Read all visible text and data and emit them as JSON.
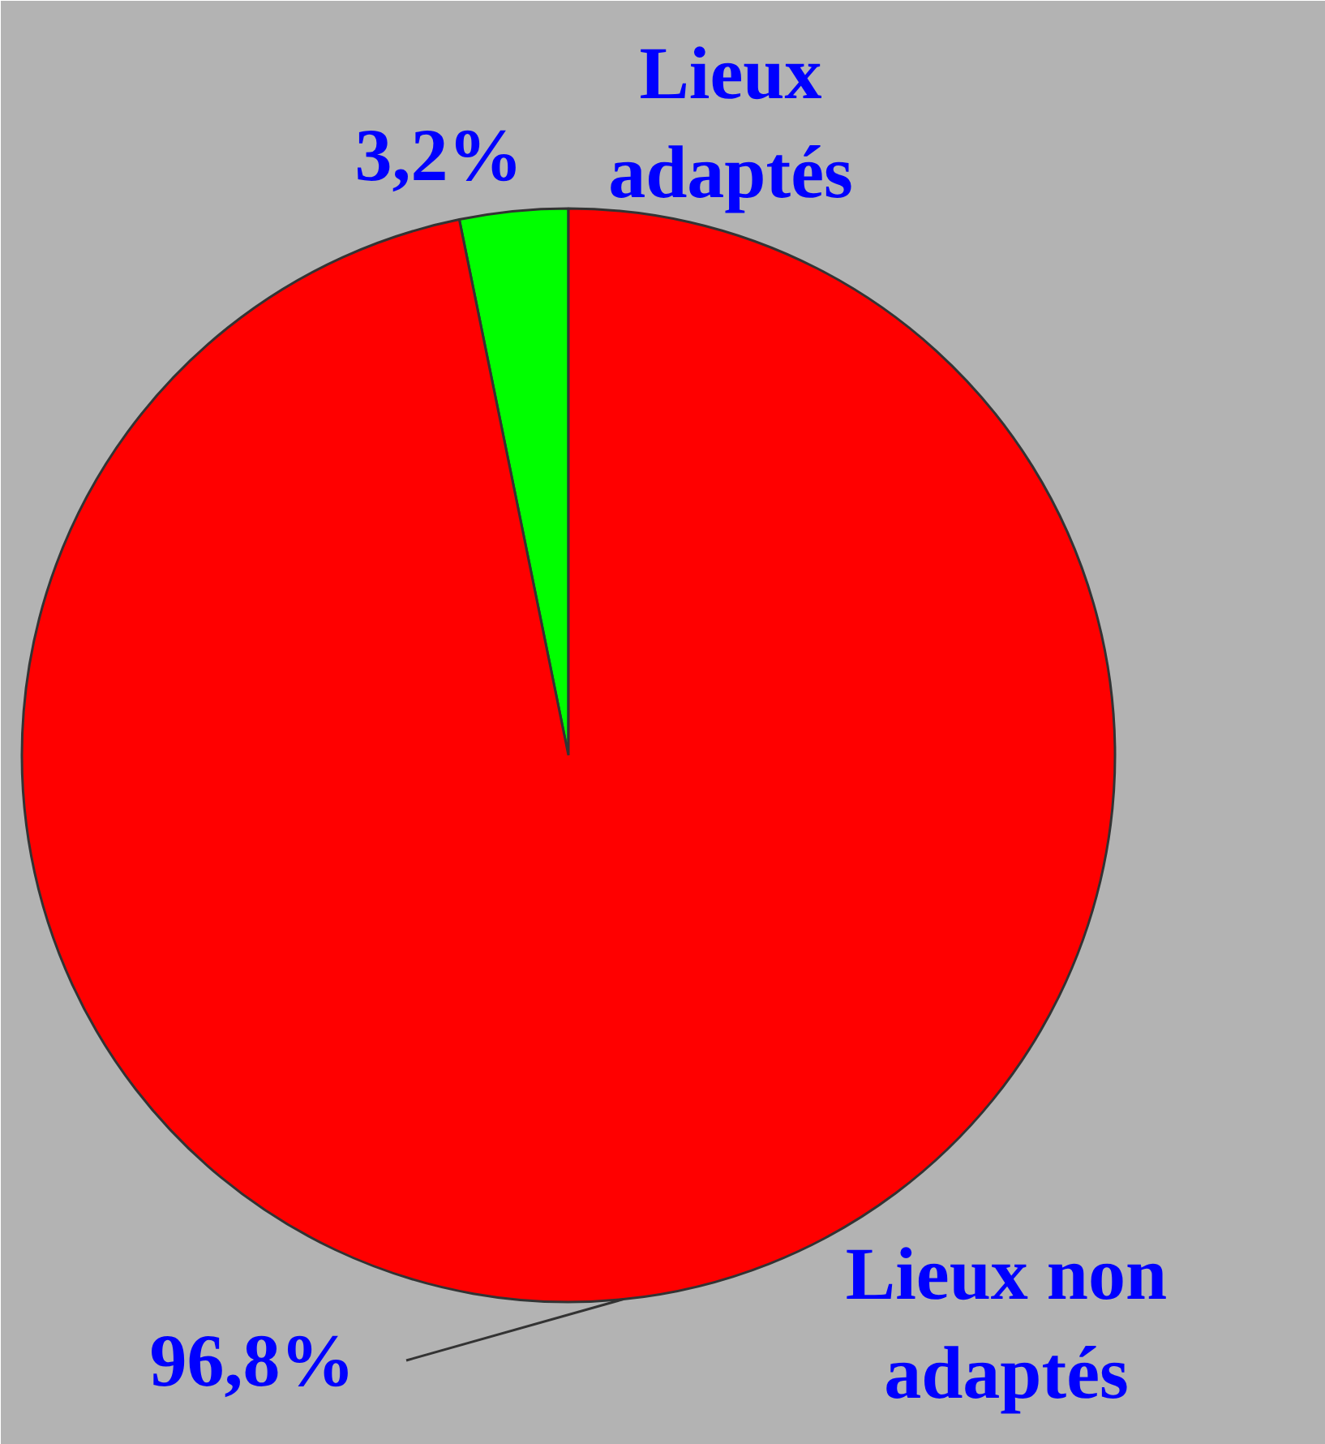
{
  "chart_data": {
    "type": "pie",
    "categories": [
      "Lieux adaptés",
      "Lieux non adaptés"
    ],
    "values": [
      3.2,
      96.8
    ],
    "colors": [
      "#00ff00",
      "#ff0000"
    ],
    "value_labels": [
      "3,2%",
      "96,8%"
    ]
  }
}
